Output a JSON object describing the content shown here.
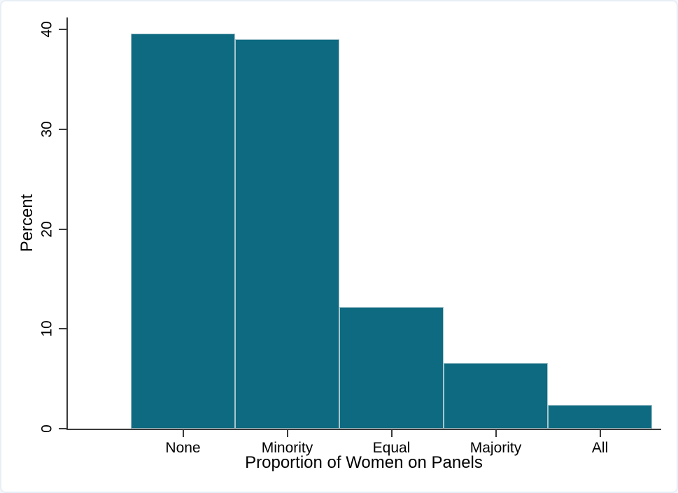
{
  "chart_data": {
    "type": "bar",
    "categories": [
      "None",
      "Minority",
      "Equal",
      "Majority",
      "All"
    ],
    "values": [
      39.6,
      39.0,
      12.2,
      6.6,
      2.4
    ],
    "title": "",
    "xlabel": "Proportion of Women on Panels",
    "ylabel": "Percent",
    "ylim": [
      0,
      40
    ],
    "yticks": [
      0,
      10,
      20,
      30,
      40
    ],
    "grid": false,
    "legend": false,
    "bar_color": "#0E6A80",
    "bar_border_color": "#A7C6CE",
    "axis_color": "#3A3A3A",
    "background_color": "#FFFFFF",
    "frame_border_color": "#E7EEF6"
  }
}
